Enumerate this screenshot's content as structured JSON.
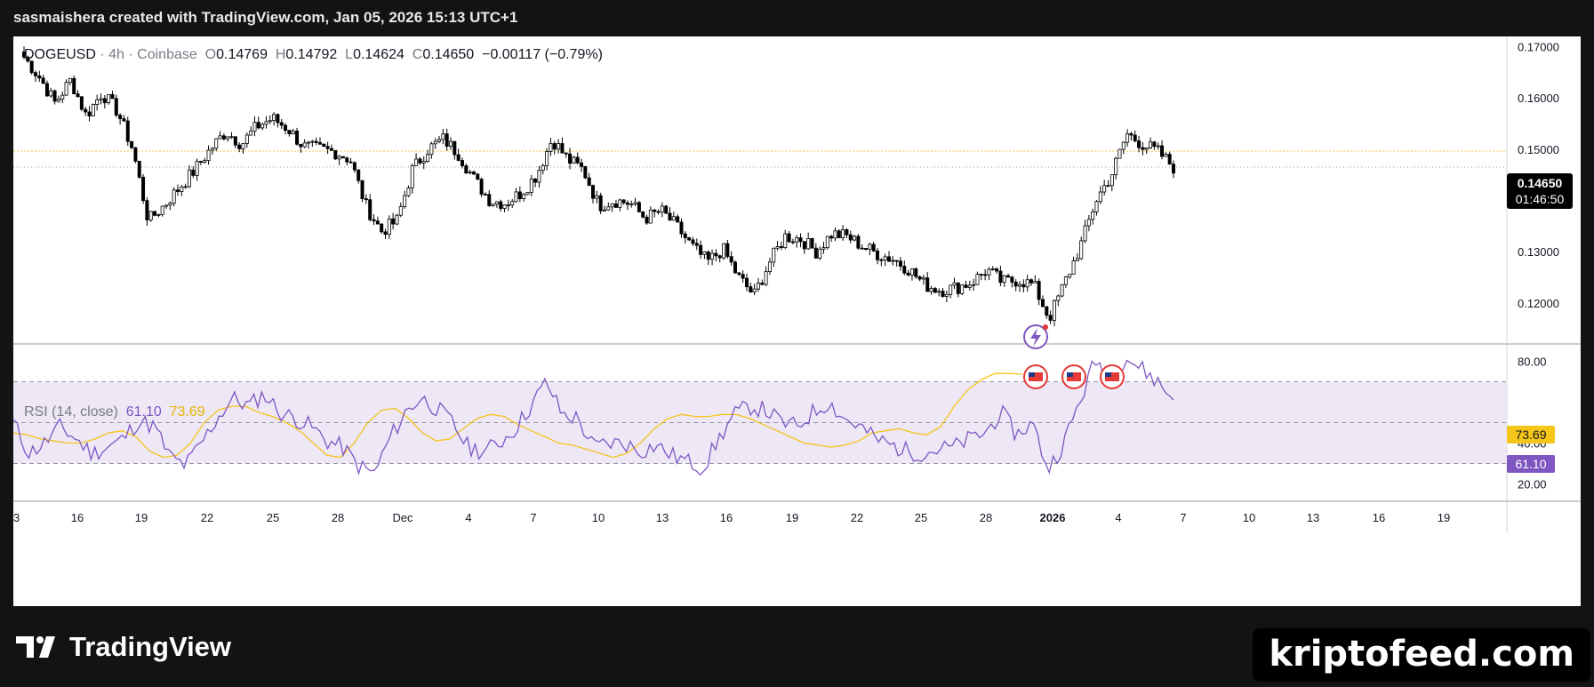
{
  "header": {
    "text": "sasmaishera created with TradingView.com, Jan 05, 2026 15:13 UTC+1"
  },
  "symbol": {
    "name": "DOGEUSD",
    "interval": "4h",
    "exchange": "Coinbase",
    "sep": "·",
    "open_label": "O",
    "open": "0.14769",
    "high_label": "H",
    "high": "0.14792",
    "low_label": "L",
    "low": "0.14624",
    "close_label": "C",
    "close": "0.14650",
    "change": "−0.00117 (−0.79%)"
  },
  "price_tag": {
    "price": "0.14650",
    "countdown": "01:46:50"
  },
  "rsi": {
    "label": "RSI (14, close)",
    "value": "61.10",
    "ma_value": "73.69"
  },
  "footer": {
    "logo_text": "TradingView",
    "watermark": "kriptofeed.com"
  },
  "colors": {
    "up": "#ffffff",
    "down": "#000000",
    "rsi_line": "#7e57c2",
    "rsi_ma": "#f5c518",
    "band": "#ede7f6",
    "price_line": "#f2c94c"
  },
  "chart_data": [
    {
      "type": "candlestick",
      "title": "DOGEUSD · 4h · Coinbase",
      "y_ticks": [
        "0.17000",
        "0.16000",
        "0.15000",
        "0.14000",
        "0.13000",
        "0.12000"
      ],
      "ylim": [
        0.112,
        0.172
      ],
      "x_ticks": [
        "3",
        "16",
        "19",
        "22",
        "25",
        "28",
        "Dec",
        "4",
        "7",
        "10",
        "13",
        "16",
        "19",
        "22",
        "25",
        "28",
        "2026",
        "4",
        "7",
        "10",
        "13",
        "16",
        "19"
      ],
      "close_path": [
        0.168,
        0.164,
        0.159,
        0.1635,
        0.1565,
        0.161,
        0.1575,
        0.15,
        0.136,
        0.139,
        0.1425,
        0.146,
        0.15,
        0.1535,
        0.151,
        0.1545,
        0.156,
        0.154,
        0.1505,
        0.15,
        0.1495,
        0.148,
        0.139,
        0.134,
        0.136,
        0.146,
        0.15,
        0.152,
        0.149,
        0.144,
        0.14,
        0.1395,
        0.1415,
        0.145,
        0.152,
        0.148,
        0.146,
        0.139,
        0.14,
        0.1395,
        0.1365,
        0.138,
        0.135,
        0.131,
        0.128,
        0.1305,
        0.125,
        0.1215,
        0.128,
        0.133,
        0.1325,
        0.13,
        0.1335,
        0.133,
        0.131,
        0.1295,
        0.1285,
        0.1265,
        0.1235,
        0.1225,
        0.123,
        0.124,
        0.1265,
        0.124,
        0.1245,
        0.1235,
        0.117,
        0.124,
        0.131,
        0.14,
        0.145,
        0.153,
        0.151,
        0.1495,
        0.1465
      ]
    },
    {
      "type": "line",
      "title": "RSI (14, close)",
      "y_ticks": [
        "80.00",
        "40.00",
        "20.00"
      ],
      "ylim": [
        12,
        88
      ],
      "bands": [
        30,
        50,
        70
      ],
      "rsi_path": [
        50,
        35,
        40,
        48,
        42,
        35,
        38,
        42,
        51,
        48,
        33,
        29,
        40,
        52,
        62,
        58,
        64,
        55,
        52,
        48,
        41,
        38,
        29,
        25,
        42,
        55,
        62,
        57,
        50,
        38,
        36,
        40,
        47,
        58,
        70,
        54,
        52,
        38,
        40,
        40,
        36,
        39,
        34,
        31,
        28,
        42,
        54,
        58,
        56,
        50,
        48,
        55,
        60,
        52,
        48,
        42,
        39,
        36,
        35,
        37,
        38,
        42,
        45,
        55,
        44,
        50,
        27,
        40,
        60,
        80,
        74,
        82,
        76,
        70,
        61
      ],
      "ma_path": [
        45,
        44,
        42,
        41,
        40,
        40,
        42,
        45,
        46,
        43,
        36,
        33,
        34,
        40,
        50,
        56,
        58,
        58,
        55,
        53,
        50,
        46,
        40,
        34,
        33,
        40,
        50,
        56,
        57,
        52,
        45,
        41,
        42,
        47,
        52,
        54,
        53,
        49,
        46,
        43,
        40,
        39,
        37,
        35,
        33,
        35,
        40,
        47,
        52,
        54,
        53,
        53,
        54,
        54,
        52,
        49,
        46,
        43,
        40,
        39,
        38,
        39,
        41,
        45,
        46,
        47,
        45,
        44,
        48,
        58,
        66,
        71,
        74,
        74,
        73.69
      ]
    }
  ]
}
